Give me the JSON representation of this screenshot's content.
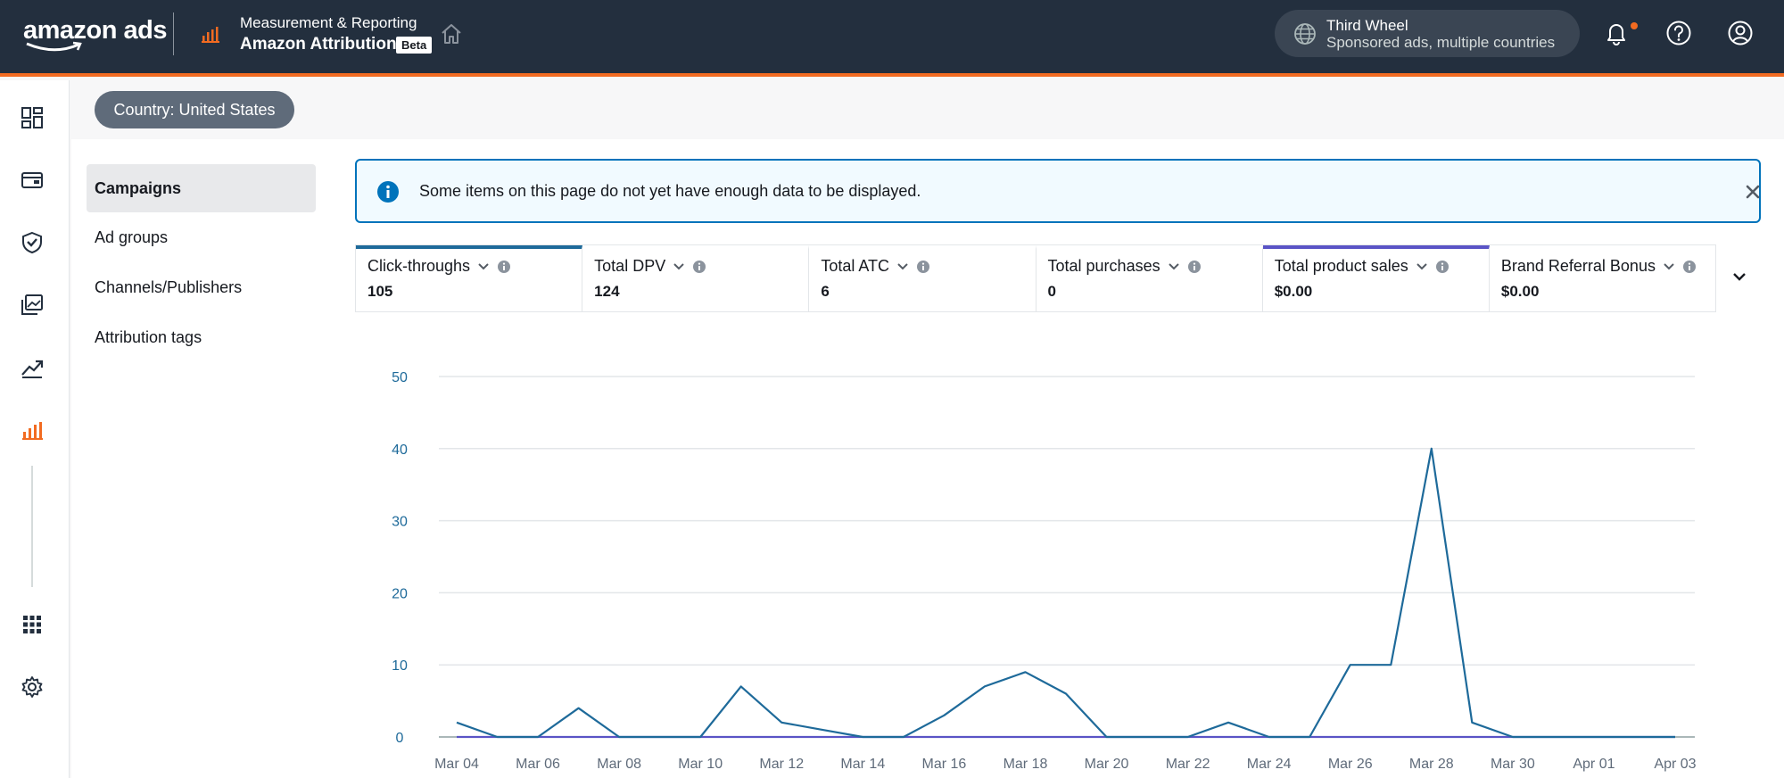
{
  "header": {
    "logo": "amazon ads",
    "product_subtitle": "Measurement & Reporting",
    "product_title": "Amazon Attribution",
    "beta_badge": "Beta",
    "account": {
      "name": "Third Wheel",
      "detail": "Sponsored ads, multiple countries"
    },
    "colors": {
      "background": "#232f3e",
      "accent": "#f26b21"
    }
  },
  "rail_icons": [
    "dashboard-icon",
    "billing-icon",
    "shield-icon",
    "creative-icon",
    "trend-icon",
    "bar-chart-icon",
    "apps-grid-icon",
    "gear-icon"
  ],
  "country_button": "Country: United States",
  "subnav": {
    "items": [
      {
        "label": "Campaigns",
        "active": true
      },
      {
        "label": "Ad groups",
        "active": false
      },
      {
        "label": "Channels/Publishers",
        "active": false
      },
      {
        "label": "Attribution tags",
        "active": false
      }
    ]
  },
  "alert": {
    "text": "Some items on this page do not yet have enough data to be displayed."
  },
  "metrics": [
    {
      "label": "Click-throughs",
      "value": "105",
      "color": "#1e6a9a"
    },
    {
      "label": "Total DPV",
      "value": "124"
    },
    {
      "label": "Total ATC",
      "value": "6"
    },
    {
      "label": "Total purchases",
      "value": "0"
    },
    {
      "label": "Total product sales",
      "value": "$0.00",
      "color": "#5a54c6"
    },
    {
      "label": "Brand Referral Bonus",
      "value": "$0.00"
    }
  ],
  "chart_data": {
    "type": "line",
    "ylim": [
      0,
      50
    ],
    "yticks": [
      0,
      10,
      20,
      30,
      40,
      50
    ],
    "x": [
      "Mar 04",
      "Mar 05",
      "Mar 06",
      "Mar 07",
      "Mar 08",
      "Mar 09",
      "Mar 10",
      "Mar 11",
      "Mar 12",
      "Mar 13",
      "Mar 14",
      "Mar 15",
      "Mar 16",
      "Mar 17",
      "Mar 18",
      "Mar 19",
      "Mar 20",
      "Mar 21",
      "Mar 22",
      "Mar 23",
      "Mar 24",
      "Mar 25",
      "Mar 26",
      "Mar 27",
      "Mar 28",
      "Mar 29",
      "Mar 30",
      "Mar 31",
      "Apr 01",
      "Apr 02",
      "Apr 03"
    ],
    "xtick_labels": [
      "Mar 04",
      "Mar 06",
      "Mar 08",
      "Mar 10",
      "Mar 12",
      "Mar 14",
      "Mar 16",
      "Mar 18",
      "Mar 20",
      "Mar 22",
      "Mar 24",
      "Mar 26",
      "Mar 28",
      "Mar 30",
      "Apr 01",
      "Apr 03"
    ],
    "series": [
      {
        "values": [
          2,
          0,
          0,
          4,
          0,
          0,
          0,
          7,
          2,
          1,
          0,
          0,
          3,
          7,
          9,
          6,
          0,
          0,
          0,
          2,
          0,
          0,
          10,
          10,
          40,
          2,
          0,
          0,
          0,
          0,
          0
        ],
        "color": "#1e6a9a"
      },
      {
        "values": [
          0,
          0,
          0,
          0,
          0,
          0,
          0,
          0,
          0,
          0,
          0,
          0,
          0,
          0,
          0,
          0,
          0,
          0,
          0,
          0,
          0,
          0,
          0,
          0,
          0,
          0,
          0,
          0,
          0,
          0,
          0
        ],
        "color": "#5a54c6"
      }
    ],
    "grid": true
  }
}
